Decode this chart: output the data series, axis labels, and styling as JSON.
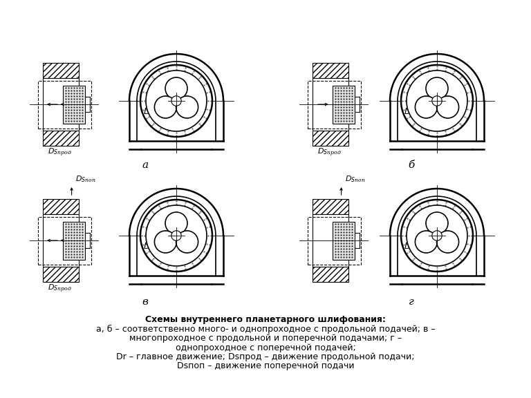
{
  "title_line1": "Схемы внутреннего планетарного шлифования:",
  "title_line2": "а, б – соответственно много- и однопроходное с продольной подачей; в –",
  "title_line3": "многопроходное с продольной и поперечной подачами; г –",
  "title_line4": "однопроходное с поперечной подачей;",
  "title_line5": "Dr – главное движение; Dsпрод – движение продольной подачи;",
  "title_line6": "Dsпоп – движение поперечной подачи",
  "bg_color": "#ffffff",
  "line_color": "#000000"
}
